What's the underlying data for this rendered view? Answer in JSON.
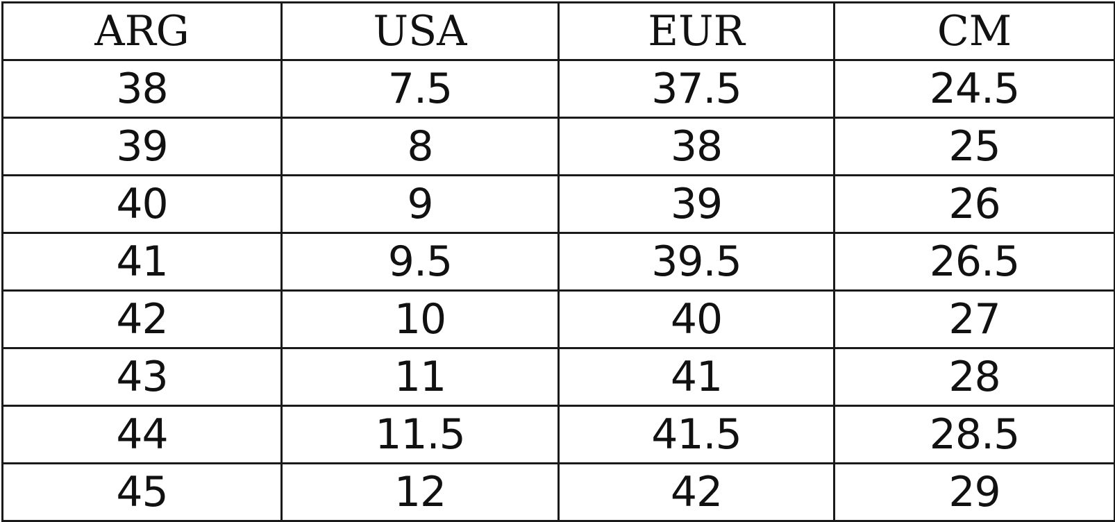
{
  "table": {
    "headers": [
      "ARG",
      "USA",
      "EUR",
      "CM"
    ],
    "rows": [
      [
        "38",
        "7.5",
        "37.5",
        "24.5"
      ],
      [
        "39",
        "8",
        "38",
        "25"
      ],
      [
        "40",
        "9",
        "39",
        "26"
      ],
      [
        "41",
        "9.5",
        "39.5",
        "26.5"
      ],
      [
        "42",
        "10",
        "40",
        "27"
      ],
      [
        "43",
        "11",
        "41",
        "28"
      ],
      [
        "44",
        "11.5",
        "41.5",
        "28.5"
      ],
      [
        "45",
        "12",
        "42",
        "29"
      ]
    ]
  }
}
